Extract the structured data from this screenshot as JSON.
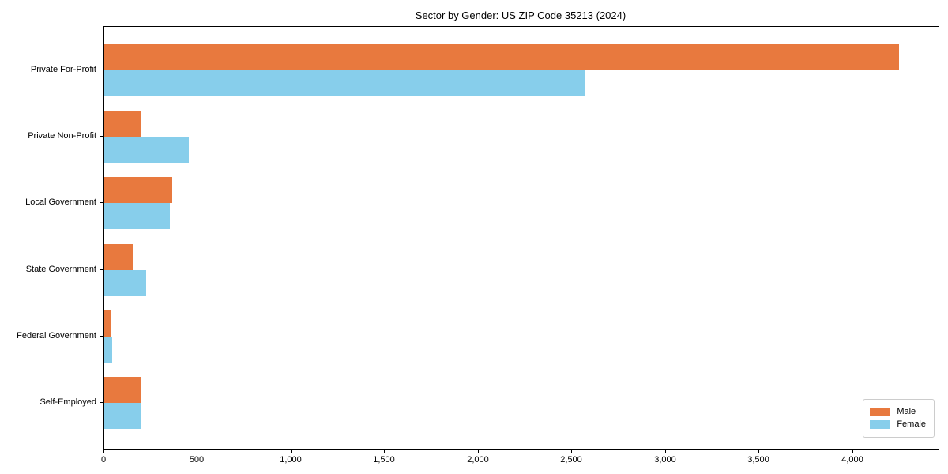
{
  "figure": {
    "background": "#ffffff"
  },
  "chart_data": {
    "type": "bar",
    "orientation": "horizontal",
    "title": "Sector by Gender: US ZIP Code 35213 (2024)",
    "categories": [
      "Private For-Profit",
      "Private Non-Profit",
      "Local Government",
      "State Government",
      "Federal Government",
      "Self-Employed"
    ],
    "series": [
      {
        "name": "Male",
        "color": "#E8793E",
        "values": [
          4245,
          195,
          365,
          150,
          35,
          195
        ]
      },
      {
        "name": "Female",
        "color": "#87CEEB",
        "values": [
          2565,
          450,
          350,
          225,
          42,
          195
        ]
      }
    ],
    "xlabel": "",
    "ylabel": "",
    "xlim": [
      0,
      4457
    ],
    "xticks": [
      0,
      500,
      1000,
      1500,
      2000,
      2500,
      3000,
      3500,
      4000
    ],
    "xtick_labels": [
      "0",
      "500",
      "1,000",
      "1,500",
      "2,000",
      "2,500",
      "3,000",
      "3,500",
      "4,000"
    ],
    "legend": {
      "position": "lower-right",
      "entries": [
        "Male",
        "Female"
      ]
    },
    "grid": false
  }
}
